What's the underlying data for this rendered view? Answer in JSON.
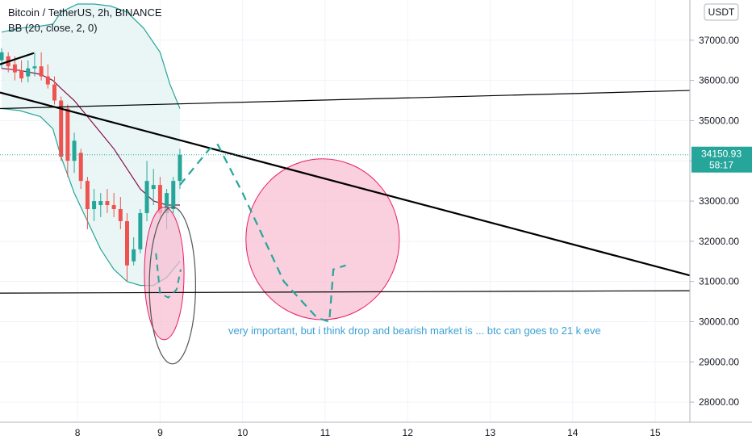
{
  "header": {
    "symbol_line": "Bitcoin / TetherUS, 2h, BINANCE",
    "indicator_line": "BB (20, close, 2, 0)"
  },
  "currency_badge": "USDT",
  "price_label": {
    "price": "34150.93",
    "countdown": "58:17"
  },
  "annotation": "very important, but i think drop and bearish market is ... btc can goes to 21 k eve",
  "colors": {
    "up": "#26a69a",
    "down": "#ef5350",
    "bb_band": "#26a69a",
    "bb_basis": "#880e4f",
    "bb_fill": "#e4f4f2",
    "circle_fill": "#f8bbd0",
    "circle_stroke": "#e91e63",
    "dashed": "#26a69a"
  },
  "chart_data": {
    "type": "candlestick",
    "ylim": [
      27500,
      38000
    ],
    "xlim": [
      7.06,
      15.42
    ],
    "y_ticks": [
      28000,
      29000,
      30000,
      31000,
      32000,
      33000,
      34000,
      35000,
      36000,
      37000
    ],
    "y_tick_labels": [
      "28000.00",
      "29000.00",
      "30000.00",
      "31000.00",
      "32000.00",
      "33000.00",
      "34000.00",
      "35000.00",
      "36000.00",
      "37000.00"
    ],
    "x_ticks": [
      8,
      9,
      10,
      11,
      12,
      13,
      14,
      15
    ],
    "x_tick_labels": [
      "8",
      "9",
      "10",
      "11",
      "12",
      "13",
      "14",
      "15"
    ],
    "candles": [
      {
        "t": 7.08,
        "o": 36500,
        "h": 36800,
        "l": 36300,
        "c": 36700
      },
      {
        "t": 7.16,
        "o": 36600,
        "h": 36700,
        "l": 36200,
        "c": 36350
      },
      {
        "t": 7.24,
        "o": 36400,
        "h": 36600,
        "l": 36000,
        "c": 36200
      },
      {
        "t": 7.32,
        "o": 36250,
        "h": 36500,
        "l": 35950,
        "c": 36050
      },
      {
        "t": 7.4,
        "o": 36100,
        "h": 36500,
        "l": 35950,
        "c": 36300
      },
      {
        "t": 7.48,
        "o": 36300,
        "h": 36700,
        "l": 36100,
        "c": 36350
      },
      {
        "t": 7.56,
        "o": 36350,
        "h": 36700,
        "l": 36000,
        "c": 36100
      },
      {
        "t": 7.64,
        "o": 36100,
        "h": 36400,
        "l": 35800,
        "c": 35900
      },
      {
        "t": 7.72,
        "o": 35900,
        "h": 36100,
        "l": 35400,
        "c": 35500
      },
      {
        "t": 7.8,
        "o": 35500,
        "h": 35600,
        "l": 34000,
        "c": 34100
      },
      {
        "t": 7.88,
        "o": 35300,
        "h": 35400,
        "l": 33600,
        "c": 34000
      },
      {
        "t": 7.96,
        "o": 34000,
        "h": 34700,
        "l": 33700,
        "c": 34500
      },
      {
        "t": 8.04,
        "o": 34200,
        "h": 34300,
        "l": 33300,
        "c": 33500
      },
      {
        "t": 8.12,
        "o": 33500,
        "h": 33600,
        "l": 32300,
        "c": 32800
      },
      {
        "t": 8.2,
        "o": 32800,
        "h": 33300,
        "l": 32500,
        "c": 33000
      },
      {
        "t": 8.28,
        "o": 32900,
        "h": 33200,
        "l": 32600,
        "c": 33000
      },
      {
        "t": 8.36,
        "o": 33000,
        "h": 33300,
        "l": 32700,
        "c": 32900
      },
      {
        "t": 8.44,
        "o": 32900,
        "h": 33200,
        "l": 32600,
        "c": 32800
      },
      {
        "t": 8.52,
        "o": 32800,
        "h": 33100,
        "l": 32300,
        "c": 32500
      },
      {
        "t": 8.6,
        "o": 32500,
        "h": 32700,
        "l": 31000,
        "c": 31400
      },
      {
        "t": 8.68,
        "o": 31500,
        "h": 32100,
        "l": 31400,
        "c": 31800
      },
      {
        "t": 8.76,
        "o": 31800,
        "h": 32800,
        "l": 31700,
        "c": 32700
      },
      {
        "t": 8.84,
        "o": 32700,
        "h": 34000,
        "l": 32500,
        "c": 33500
      },
      {
        "t": 8.92,
        "o": 33300,
        "h": 33800,
        "l": 32900,
        "c": 33400
      },
      {
        "t": 9.0,
        "o": 33400,
        "h": 33600,
        "l": 32600,
        "c": 32700
      },
      {
        "t": 9.08,
        "o": 32700,
        "h": 33300,
        "l": 32300,
        "c": 33200
      },
      {
        "t": 9.16,
        "o": 32800,
        "h": 33600,
        "l": 32700,
        "c": 33500
      },
      {
        "t": 9.24,
        "o": 33500,
        "h": 34300,
        "l": 33300,
        "c": 34150
      }
    ],
    "bb_upper": [
      [
        7.08,
        37200
      ],
      [
        7.3,
        37300
      ],
      [
        7.55,
        37350
      ],
      [
        7.7,
        37400
      ],
      [
        7.8,
        37700
      ],
      [
        8.0,
        37900
      ],
      [
        8.2,
        37900
      ],
      [
        8.4,
        37850
      ],
      [
        8.6,
        37700
      ],
      [
        8.8,
        37300
      ],
      [
        9.0,
        36700
      ],
      [
        9.12,
        35900
      ],
      [
        9.24,
        35300
      ]
    ],
    "bb_basis": [
      [
        7.08,
        36300
      ],
      [
        7.3,
        36250
      ],
      [
        7.55,
        36150
      ],
      [
        7.7,
        36000
      ],
      [
        7.8,
        35800
      ],
      [
        7.96,
        35500
      ],
      [
        8.12,
        35100
      ],
      [
        8.28,
        34700
      ],
      [
        8.44,
        34300
      ],
      [
        8.6,
        33800
      ],
      [
        8.76,
        33300
      ],
      [
        8.92,
        33000
      ],
      [
        9.08,
        32900
      ],
      [
        9.24,
        32900
      ]
    ],
    "bb_lower": [
      [
        7.08,
        35300
      ],
      [
        7.3,
        35250
      ],
      [
        7.55,
        35100
      ],
      [
        7.7,
        34800
      ],
      [
        7.8,
        34100
      ],
      [
        7.96,
        33200
      ],
      [
        8.12,
        32500
      ],
      [
        8.28,
        31800
      ],
      [
        8.44,
        31300
      ],
      [
        8.6,
        31000
      ],
      [
        8.76,
        30900
      ],
      [
        8.92,
        30900
      ],
      [
        9.08,
        31100
      ],
      [
        9.24,
        31500
      ]
    ],
    "trend_lines": [
      {
        "style": "thick",
        "points": [
          [
            7.06,
            35700
          ],
          [
            15.42,
            31150
          ]
        ]
      },
      {
        "style": "thin",
        "points": [
          [
            7.06,
            35300
          ],
          [
            15.42,
            35750
          ]
        ]
      },
      {
        "style": "thin",
        "points": [
          [
            7.06,
            30710
          ],
          [
            15.42,
            30770
          ]
        ]
      },
      {
        "style": "thick",
        "points": [
          [
            7.06,
            36400
          ],
          [
            7.47,
            36680
          ]
        ]
      }
    ],
    "dashed_path": [
      [
        9.24,
        33400
      ],
      [
        9.6,
        34300
      ],
      [
        9.7,
        34400
      ],
      [
        10.0,
        33200
      ],
      [
        10.5,
        31000
      ],
      [
        10.9,
        30100
      ],
      [
        11.05,
        30000
      ],
      [
        11.1,
        31300
      ],
      [
        11.25,
        31400
      ]
    ],
    "dashed_small": [
      [
        8.95,
        31700
      ],
      [
        9.0,
        30700
      ],
      [
        9.1,
        30600
      ],
      [
        9.2,
        30800
      ],
      [
        9.25,
        31300
      ]
    ],
    "circles": [
      {
        "cx": 10.97,
        "cy": 32050,
        "r_x": 0.93,
        "r_y": 2000,
        "fill": true
      },
      {
        "cx": 9.05,
        "cy": 31200,
        "r_x": 0.24,
        "r_y": 1650,
        "fill": true
      },
      {
        "cx": 9.15,
        "cy": 30900,
        "r_x": 0.28,
        "r_y": 1950,
        "fill": false
      }
    ],
    "last_price": 34150.93
  }
}
